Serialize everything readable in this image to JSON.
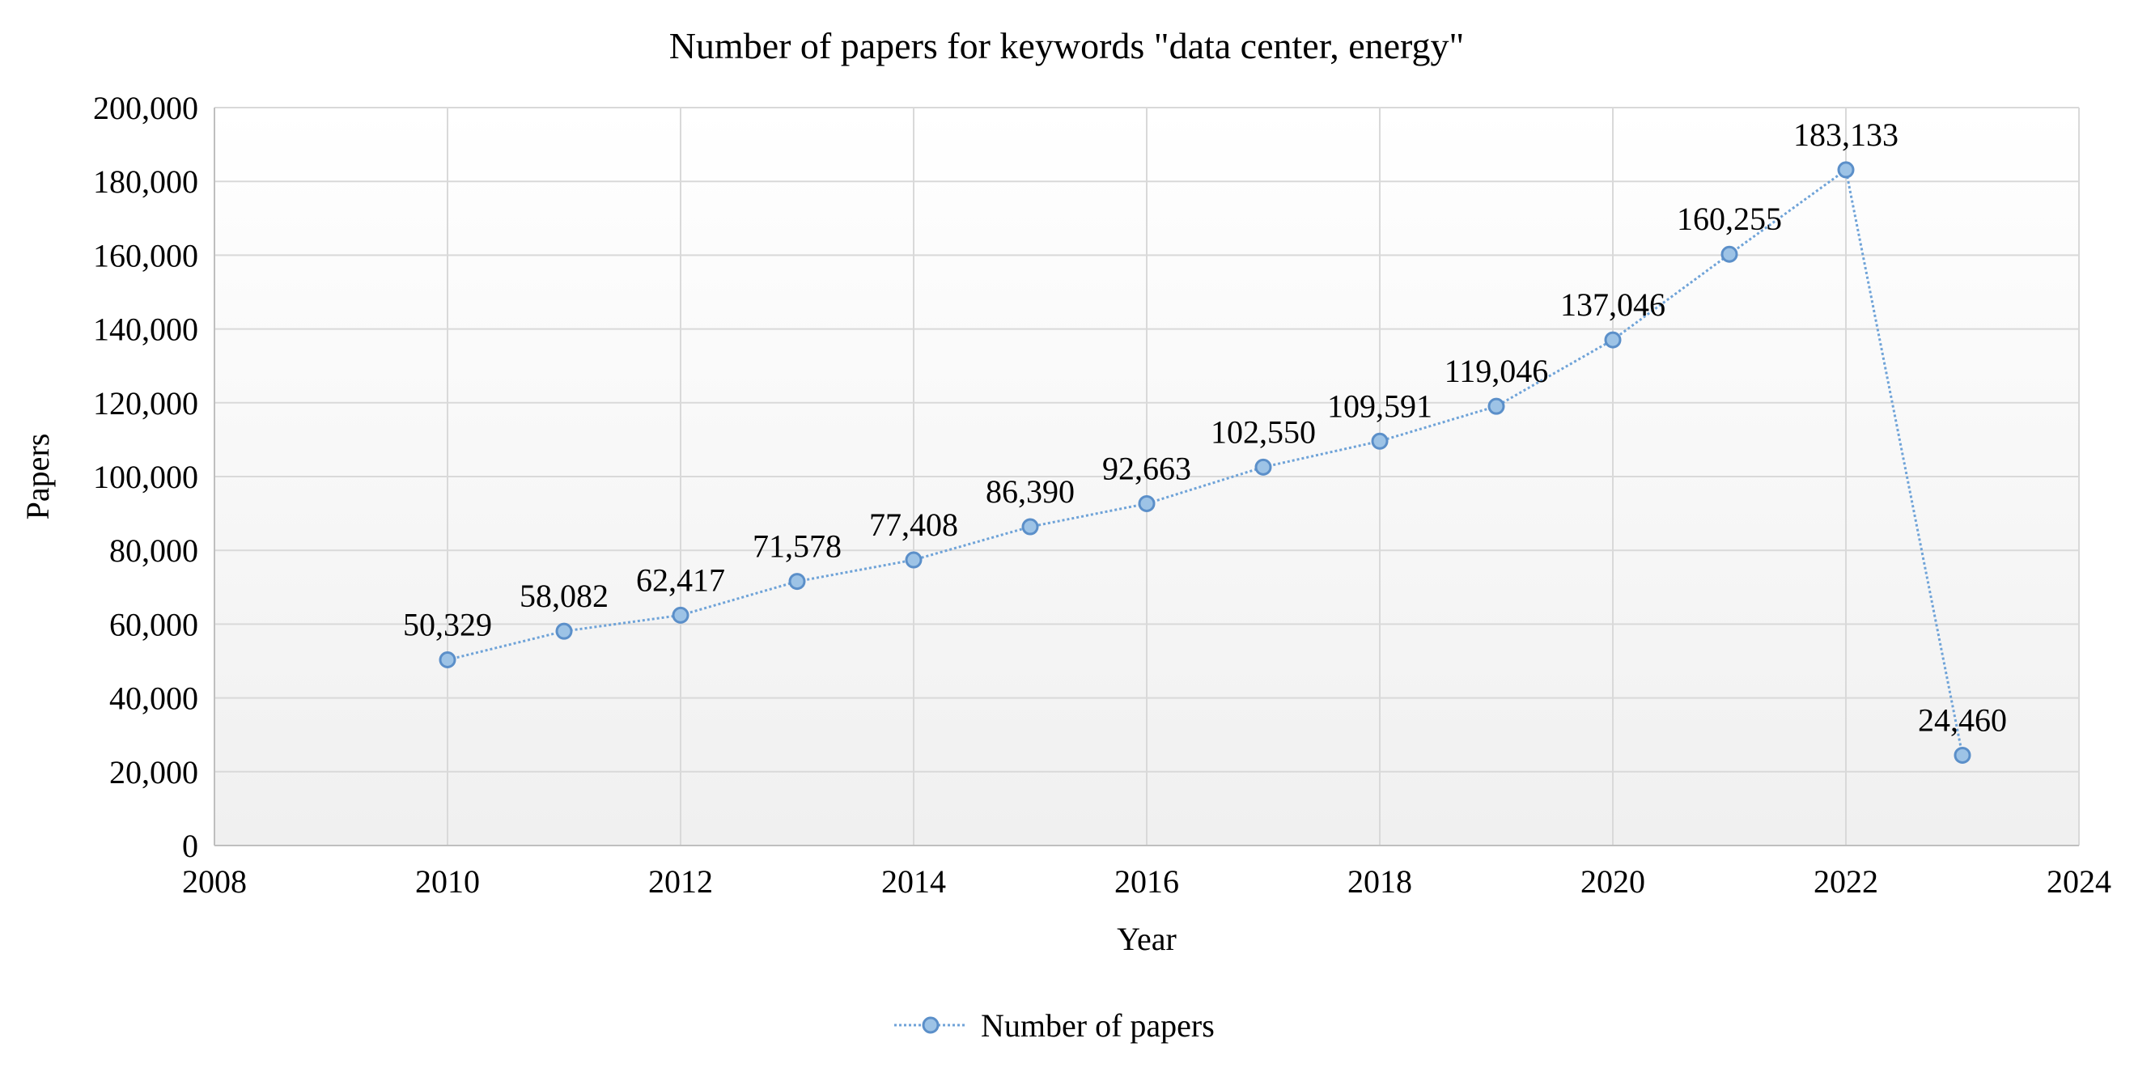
{
  "chart_data": {
    "type": "scatter",
    "title": "Number of papers for keywords \"data center, energy\"",
    "xlabel": "Year",
    "ylabel": "Papers",
    "xlim": [
      2008,
      2024
    ],
    "ylim": [
      0,
      200000
    ],
    "x_ticks": [
      2008,
      2010,
      2012,
      2014,
      2016,
      2018,
      2020,
      2022,
      2024
    ],
    "y_ticks": [
      0,
      20000,
      40000,
      60000,
      80000,
      100000,
      120000,
      140000,
      160000,
      180000,
      200000
    ],
    "x_tick_labels": [
      "2008",
      "2010",
      "2012",
      "2014",
      "2016",
      "2018",
      "2020",
      "2022",
      "2024"
    ],
    "y_tick_labels": [
      "0",
      "20,000",
      "40,000",
      "60,000",
      "80,000",
      "100,000",
      "120,000",
      "140,000",
      "160,000",
      "180,000",
      "200,000"
    ],
    "grid": true,
    "legend_position": "bottom",
    "colors": {
      "line": "#6fa3d8",
      "marker_fill": "#9dc3e6",
      "marker_stroke": "#5b8fc9",
      "grid": "#d9d9d9",
      "axis": "#bfbfbf",
      "plot_bg_top": "#ffffff",
      "plot_bg_bottom": "#f0f0f0"
    },
    "series": [
      {
        "name": "Number of papers",
        "x": [
          2010,
          2011,
          2012,
          2013,
          2014,
          2015,
          2016,
          2017,
          2018,
          2019,
          2020,
          2021,
          2022,
          2023
        ],
        "y": [
          50329,
          58082,
          62417,
          71578,
          77408,
          86390,
          92663,
          102550,
          109591,
          119046,
          137046,
          160255,
          183133,
          24460
        ],
        "labels": [
          "50,329",
          "58,082",
          "62,417",
          "71,578",
          "77,408",
          "86,390",
          "92,663",
          "102,550",
          "109,591",
          "119,046",
          "137,046",
          "160,255",
          "183,133",
          "24,460"
        ]
      }
    ]
  }
}
